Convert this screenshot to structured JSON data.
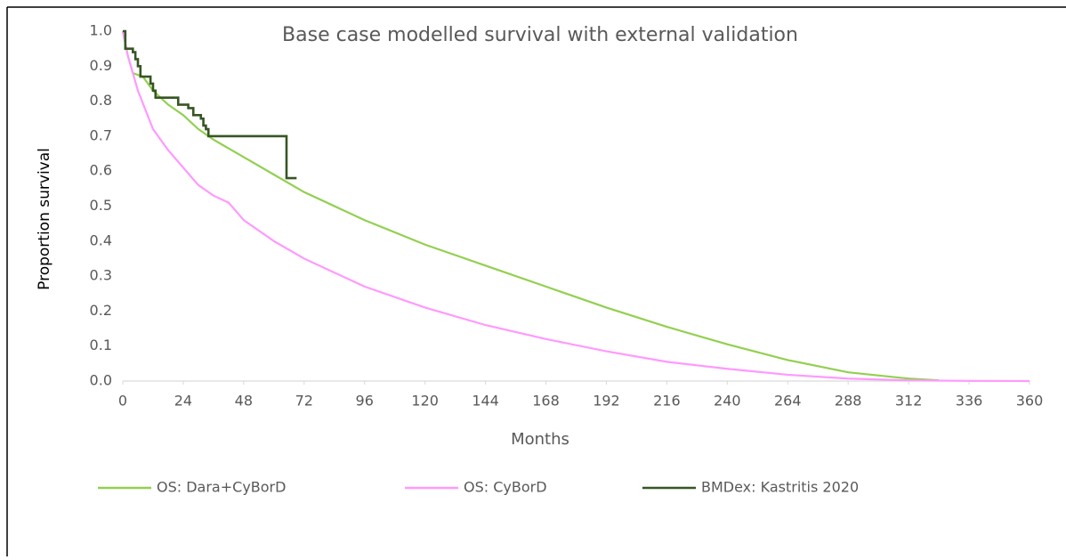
{
  "chart_data": {
    "type": "line",
    "title": "Base case modelled survival with external validation",
    "x_label": "Months",
    "y_label": "Proportion survival",
    "xlim": [
      0,
      360
    ],
    "ylim": [
      0,
      1
    ],
    "xticks": [
      0,
      24,
      48,
      72,
      96,
      120,
      144,
      168,
      192,
      216,
      240,
      264,
      288,
      312,
      336,
      360
    ],
    "yticks": [
      {
        "value": 0,
        "label": "0.0"
      },
      0.1,
      0.2,
      0.3,
      0.4,
      0.5,
      0.6,
      0.7,
      0.8,
      0.9,
      {
        "value": 1,
        "label": "1.0"
      }
    ],
    "grid": false,
    "legend": "bottom",
    "series": [
      {
        "name": "OS: Dara+CyBorD",
        "color": "#92d050",
        "x": [
          0,
          2,
          4,
          8,
          12,
          18,
          24,
          30,
          36,
          48,
          60,
          72,
          96,
          120,
          144,
          168,
          192,
          216,
          240,
          264,
          288,
          312,
          324
        ],
        "values": [
          1.0,
          0.93,
          0.88,
          0.87,
          0.83,
          0.79,
          0.76,
          0.72,
          0.69,
          0.64,
          0.59,
          0.54,
          0.46,
          0.39,
          0.33,
          0.27,
          0.21,
          0.155,
          0.105,
          0.06,
          0.025,
          0.007,
          0.002
        ]
      },
      {
        "name": "OS: CyBorD",
        "color": "#ff99ff",
        "x": [
          0,
          2,
          6,
          12,
          18,
          24,
          30,
          36,
          42,
          48,
          60,
          72,
          96,
          120,
          144,
          168,
          192,
          216,
          240,
          264,
          288,
          312,
          336,
          360
        ],
        "values": [
          1.0,
          0.93,
          0.83,
          0.72,
          0.66,
          0.61,
          0.56,
          0.53,
          0.51,
          0.46,
          0.4,
          0.35,
          0.27,
          0.21,
          0.16,
          0.12,
          0.085,
          0.055,
          0.035,
          0.018,
          0.007,
          0.002,
          0.0005,
          0
        ]
      },
      {
        "name": "BMDex: Kastritis 2020",
        "color": "#375623",
        "x": [
          0,
          1,
          1,
          4,
          4,
          5,
          5,
          6,
          6,
          7,
          7,
          11,
          11,
          12,
          12,
          13,
          13,
          22,
          22,
          26,
          26,
          28,
          28,
          31,
          31,
          32,
          32,
          33,
          33,
          34,
          34,
          65,
          65,
          69
        ],
        "values": [
          1.0,
          1.0,
          0.95,
          0.95,
          0.94,
          0.94,
          0.92,
          0.92,
          0.9,
          0.9,
          0.87,
          0.87,
          0.85,
          0.85,
          0.83,
          0.83,
          0.81,
          0.81,
          0.79,
          0.79,
          0.78,
          0.78,
          0.76,
          0.76,
          0.75,
          0.75,
          0.73,
          0.73,
          0.72,
          0.72,
          0.7,
          0.7,
          0.58,
          0.58
        ]
      }
    ]
  }
}
